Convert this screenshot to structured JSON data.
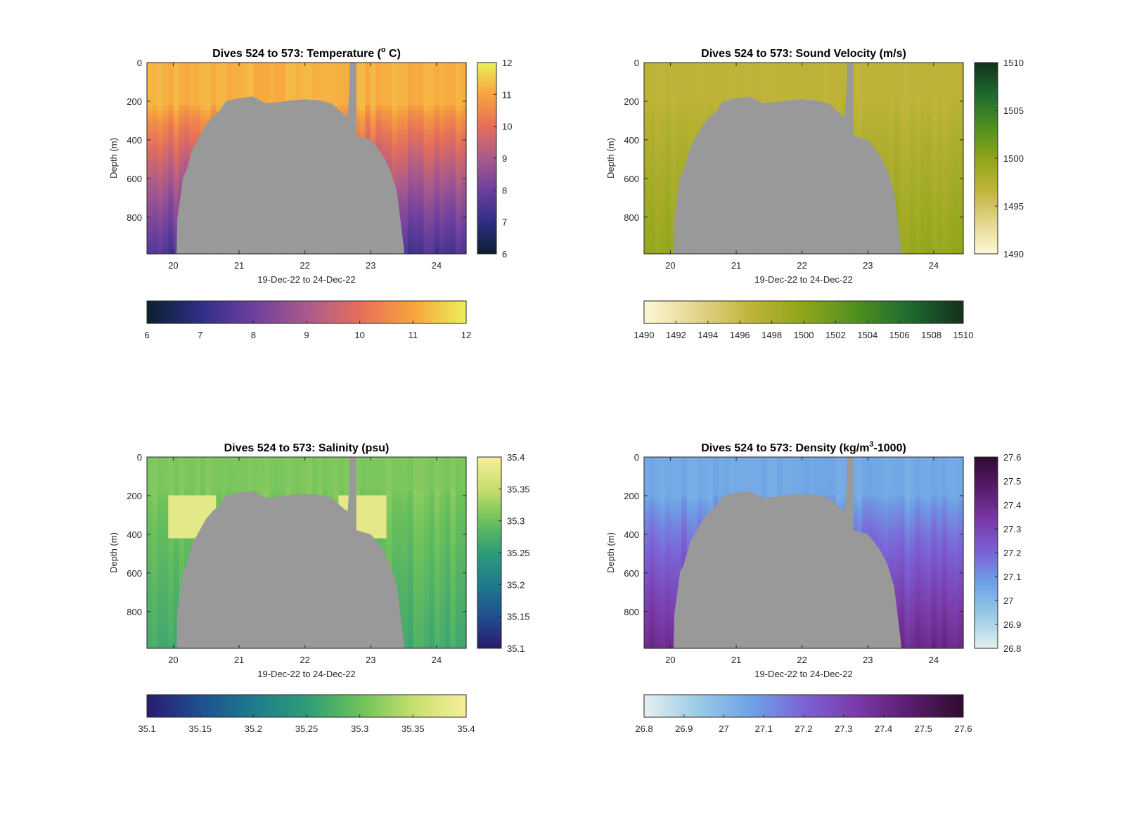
{
  "figure": {
    "background": "#ffffff",
    "land_color": "#999999"
  },
  "chart_data": [
    {
      "type": "heatmap",
      "id": "temperature",
      "title_prefix": "Dives 524 to 573: Temperature (",
      "title_super": "o",
      "title_suffix": " C)",
      "xlabel": "19-Dec-22 to 24-Dec-22",
      "ylabel": "Depth (m)",
      "x_range": [
        19.6,
        24.45
      ],
      "x_ticks": [
        20,
        21,
        22,
        23,
        24
      ],
      "y_range": [
        0,
        990
      ],
      "y_ticks": [
        0,
        200,
        400,
        600,
        800
      ],
      "colormap": [
        "#0b1f2e",
        "#2d2f86",
        "#6d3f9f",
        "#a85a8c",
        "#e66f5a",
        "#f8a23c",
        "#ecf05a"
      ],
      "color_range": [
        6,
        12
      ],
      "colorbar_ticks": [
        6,
        7,
        8,
        9,
        10,
        11,
        12
      ],
      "horizontal_colorbar_ticks": [
        6,
        7,
        8,
        9,
        10,
        11,
        12
      ],
      "surface_value": 11.2,
      "deep_value": 7.5,
      "surface_layer_depth": 220,
      "min_value": 6.5,
      "max_value": 11.6
    },
    {
      "type": "heatmap",
      "id": "sound_velocity",
      "title_prefix": "Dives 524 to 573: Sound Velocity (m/s)",
      "title_super": "",
      "title_suffix": "",
      "xlabel": "19-Dec-22 to 24-Dec-22",
      "ylabel": "Depth (m)",
      "x_range": [
        19.6,
        24.45
      ],
      "x_ticks": [
        20,
        21,
        22,
        23,
        24
      ],
      "y_range": [
        0,
        990
      ],
      "y_ticks": [
        0,
        200,
        400,
        600,
        800
      ],
      "colormap": [
        "#fdf8d6",
        "#e4d58c",
        "#bfb43a",
        "#8fa51a",
        "#4f8f1f",
        "#1d6a2f",
        "#13301c"
      ],
      "color_range": [
        1490,
        1510
      ],
      "colorbar_ticks": [
        1490,
        1495,
        1500,
        1505,
        1510
      ],
      "horizontal_colorbar_ticks": [
        1490,
        1492,
        1494,
        1496,
        1498,
        1500,
        1502,
        1504,
        1506,
        1508,
        1510
      ],
      "surface_value": 1496.8,
      "deep_value": 1499.5,
      "surface_layer_depth": 200,
      "min_value": 1494.0,
      "max_value": 1500.5
    },
    {
      "type": "heatmap",
      "id": "salinity",
      "title_prefix": "Dives 524 to 573: Salinity (psu)",
      "title_super": "",
      "title_suffix": "",
      "xlabel": "19-Dec-22 to 24-Dec-22",
      "ylabel": "Depth (m)",
      "x_range": [
        19.6,
        24.45
      ],
      "x_ticks": [
        20,
        21,
        22,
        23,
        24
      ],
      "y_range": [
        0,
        990
      ],
      "y_ticks": [
        0,
        200,
        400,
        600,
        800
      ],
      "colormap": [
        "#2a1a6e",
        "#1f4f8f",
        "#1f7a8c",
        "#2e9c78",
        "#6cc15a",
        "#c6df6e",
        "#f8ee9a"
      ],
      "color_range": [
        35.1,
        35.4
      ],
      "colorbar_ticks": [
        35.1,
        35.15,
        35.2,
        35.25,
        35.3,
        35.35,
        35.4
      ],
      "horizontal_colorbar_ticks": [
        35.1,
        35.15,
        35.2,
        35.25,
        35.3,
        35.35,
        35.4
      ],
      "surface_value": 35.31,
      "deep_value": 35.27,
      "surface_layer_depth": 180,
      "min_value": 35.24,
      "max_value": 35.39
    },
    {
      "type": "heatmap",
      "id": "density",
      "title_prefix": "Dives 524 to 573: Density (kg/m",
      "title_super": "3",
      "title_suffix": "-1000)",
      "xlabel": "19-Dec-22 to 24-Dec-22",
      "ylabel": "Depth (m)",
      "x_range": [
        19.6,
        24.45
      ],
      "x_ticks": [
        20,
        21,
        22,
        23,
        24
      ],
      "y_range": [
        0,
        990
      ],
      "y_ticks": [
        0,
        200,
        400,
        600,
        800
      ],
      "colormap": [
        "#e4f0f0",
        "#9ccbe6",
        "#6ea4e6",
        "#7b63d6",
        "#7a3aa8",
        "#5a1c6e",
        "#2e0c2e"
      ],
      "color_range": [
        26.8,
        27.6
      ],
      "colorbar_ticks": [
        26.8,
        26.9,
        27,
        27.1,
        27.2,
        27.3,
        27.4,
        27.5,
        27.6
      ],
      "horizontal_colorbar_ticks": [
        26.8,
        26.9,
        27,
        27.1,
        27.2,
        27.3,
        27.4,
        27.5,
        27.6
      ],
      "surface_value": 27.05,
      "deep_value": 27.4,
      "surface_layer_depth": 200,
      "min_value": 27.0,
      "max_value": 27.55
    }
  ],
  "bathymetry_profile": {
    "x": [
      19.6,
      20.05,
      20.06,
      20.15,
      20.2,
      20.3,
      20.4,
      20.5,
      20.6,
      20.7,
      20.8,
      21.0,
      21.2,
      21.4,
      21.6,
      21.8,
      22.0,
      22.2,
      22.4,
      22.5,
      22.6,
      22.65,
      22.7,
      22.72,
      22.78,
      22.8,
      23.0,
      23.1,
      23.2,
      23.3,
      23.4,
      23.5,
      23.51,
      24.45
    ],
    "depth": [
      990,
      990,
      810,
      590,
      560,
      440,
      380,
      320,
      280,
      250,
      200,
      185,
      175,
      210,
      205,
      195,
      190,
      195,
      210,
      240,
      270,
      280,
      0,
      0,
      380,
      380,
      400,
      440,
      490,
      560,
      670,
      950,
      990,
      990
    ]
  },
  "gap_strip": {
    "x": 22.68,
    "width": 0.1
  }
}
